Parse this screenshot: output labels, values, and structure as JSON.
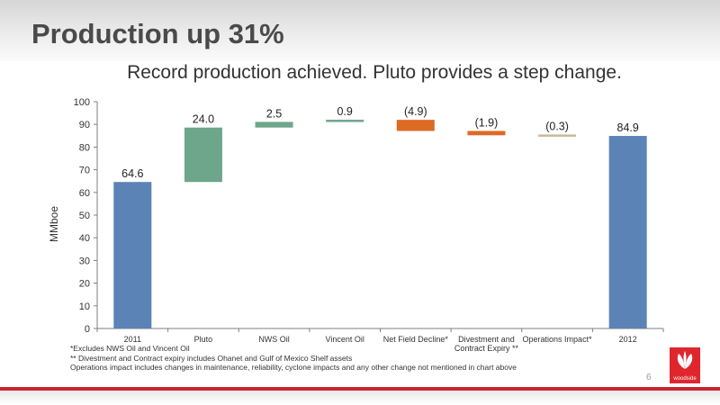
{
  "slide": {
    "title": "Production up 31%",
    "subtitle": "Record production achieved. Pluto provides a step change.",
    "page_number": "6",
    "logo_text": "woodside"
  },
  "footnotes": [
    "*Excludes NWS Oil and Vincent Oil",
    "** Divestment and Contract expiry includes Ohanet and Gulf of Mexico Shelf assets",
    "Operations impact includes changes in maintenance, reliability, cyclone impacts and any other change not mentioned in chart above"
  ],
  "colors": {
    "total": "#5b83b5",
    "increase": "#6da68a",
    "decrease": "#dd6b24",
    "small_decrease": "#c9b99a",
    "accent_red": "#c9252c"
  },
  "chart_data": {
    "type": "bar",
    "subtype": "waterfall",
    "ylabel": "MMboe",
    "ylim": [
      0,
      100
    ],
    "yticks": [
      0,
      10,
      20,
      30,
      40,
      50,
      60,
      70,
      80,
      90,
      100
    ],
    "grid": false,
    "bars": [
      {
        "category": [
          "2011"
        ],
        "start": 0,
        "end": 64.6,
        "label": "64.6",
        "kind": "total"
      },
      {
        "category": [
          "Pluto"
        ],
        "start": 64.6,
        "end": 88.6,
        "label": "24.0",
        "kind": "increase"
      },
      {
        "category": [
          "NWS Oil"
        ],
        "start": 88.6,
        "end": 91.1,
        "label": "2.5",
        "kind": "increase"
      },
      {
        "category": [
          "Vincent Oil"
        ],
        "start": 91.1,
        "end": 92.0,
        "label": "0.9",
        "kind": "increase"
      },
      {
        "category": [
          "Net Field Decline*"
        ],
        "start": 92.0,
        "end": 87.1,
        "label": "(4.9)",
        "kind": "decrease"
      },
      {
        "category": [
          "Divestment and",
          "Contract Expiry **"
        ],
        "start": 87.1,
        "end": 85.2,
        "label": "(1.9)",
        "kind": "decrease"
      },
      {
        "category": [
          "Operations Impact*"
        ],
        "start": 85.2,
        "end": 84.9,
        "label": "(0.3)",
        "kind": "small_decrease"
      },
      {
        "category": [
          "2012"
        ],
        "start": 0,
        "end": 84.9,
        "label": "84.9",
        "kind": "total"
      }
    ]
  }
}
